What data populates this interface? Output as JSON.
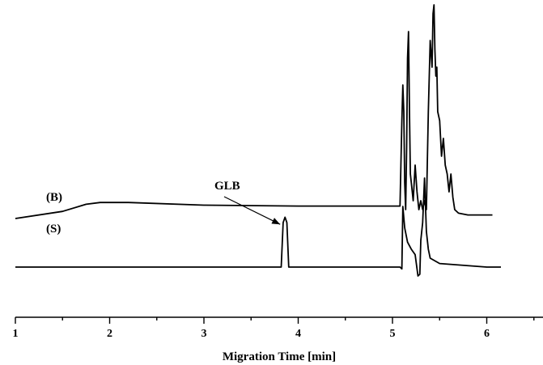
{
  "chart_data": {
    "type": "line",
    "title": "",
    "xlabel": "Migration Time [min]",
    "ylabel": "",
    "xlim": [
      1,
      6.6
    ],
    "x_ticks": [
      "1",
      "2",
      "3",
      "4",
      "5",
      "6"
    ],
    "y_axis_shown": false,
    "grid": false,
    "legend": "none",
    "series": [
      {
        "name": "(B)",
        "x": [
          1.0,
          1.5,
          1.75,
          1.9,
          2.2,
          3.0,
          4.0,
          5.0,
          5.08,
          5.1,
          5.11,
          5.12,
          5.13,
          5.14,
          5.15,
          5.16,
          5.17,
          5.18,
          5.19,
          5.2,
          5.22,
          5.24,
          5.26,
          5.28,
          5.3,
          5.32,
          5.34,
          5.36,
          5.38,
          5.4,
          5.42,
          5.43,
          5.44,
          5.45,
          5.46,
          5.47,
          5.48,
          5.5,
          5.52,
          5.54,
          5.56,
          5.58,
          5.6,
          5.62,
          5.64,
          5.66,
          5.7,
          5.8,
          6.06
        ],
        "y": [
          0.0,
          0.04,
          0.08,
          0.09,
          0.09,
          0.075,
          0.07,
          0.07,
          0.07,
          0.55,
          0.75,
          0.6,
          0.2,
          0.05,
          0.4,
          0.9,
          1.05,
          0.6,
          0.25,
          0.2,
          0.1,
          0.3,
          0.15,
          0.05,
          0.1,
          0.05,
          0.1,
          0.05,
          0.6,
          1.0,
          0.85,
          1.15,
          1.2,
          0.95,
          0.8,
          0.85,
          0.6,
          0.55,
          0.35,
          0.45,
          0.3,
          0.25,
          0.15,
          0.25,
          0.12,
          0.05,
          0.03,
          0.02,
          0.02
        ],
        "color": "#000000"
      },
      {
        "name": "(S)",
        "x": [
          1.0,
          2.0,
          2.5,
          3.0,
          3.5,
          3.82,
          3.84,
          3.86,
          3.88,
          3.9,
          3.92,
          4.0,
          4.5,
          5.0,
          5.08,
          5.1,
          5.11,
          5.13,
          5.16,
          5.2,
          5.24,
          5.27,
          5.29,
          5.3,
          5.32,
          5.34,
          5.36,
          5.38,
          5.4,
          5.5,
          6.0,
          6.15
        ],
        "y": [
          0.0,
          0.0,
          0.0,
          0.0,
          0.0,
          0.0,
          0.25,
          0.28,
          0.25,
          0.0,
          0.0,
          0.0,
          0.0,
          0.0,
          0.0,
          -0.01,
          0.34,
          0.22,
          0.14,
          0.1,
          0.07,
          -0.05,
          -0.04,
          0.15,
          0.25,
          0.5,
          0.2,
          0.1,
          0.05,
          0.02,
          0.0,
          0.0
        ],
        "color": "#000000"
      }
    ],
    "annotations": [
      {
        "text": "GLB",
        "target_x": 3.86,
        "target_series": "(S)"
      }
    ]
  }
}
